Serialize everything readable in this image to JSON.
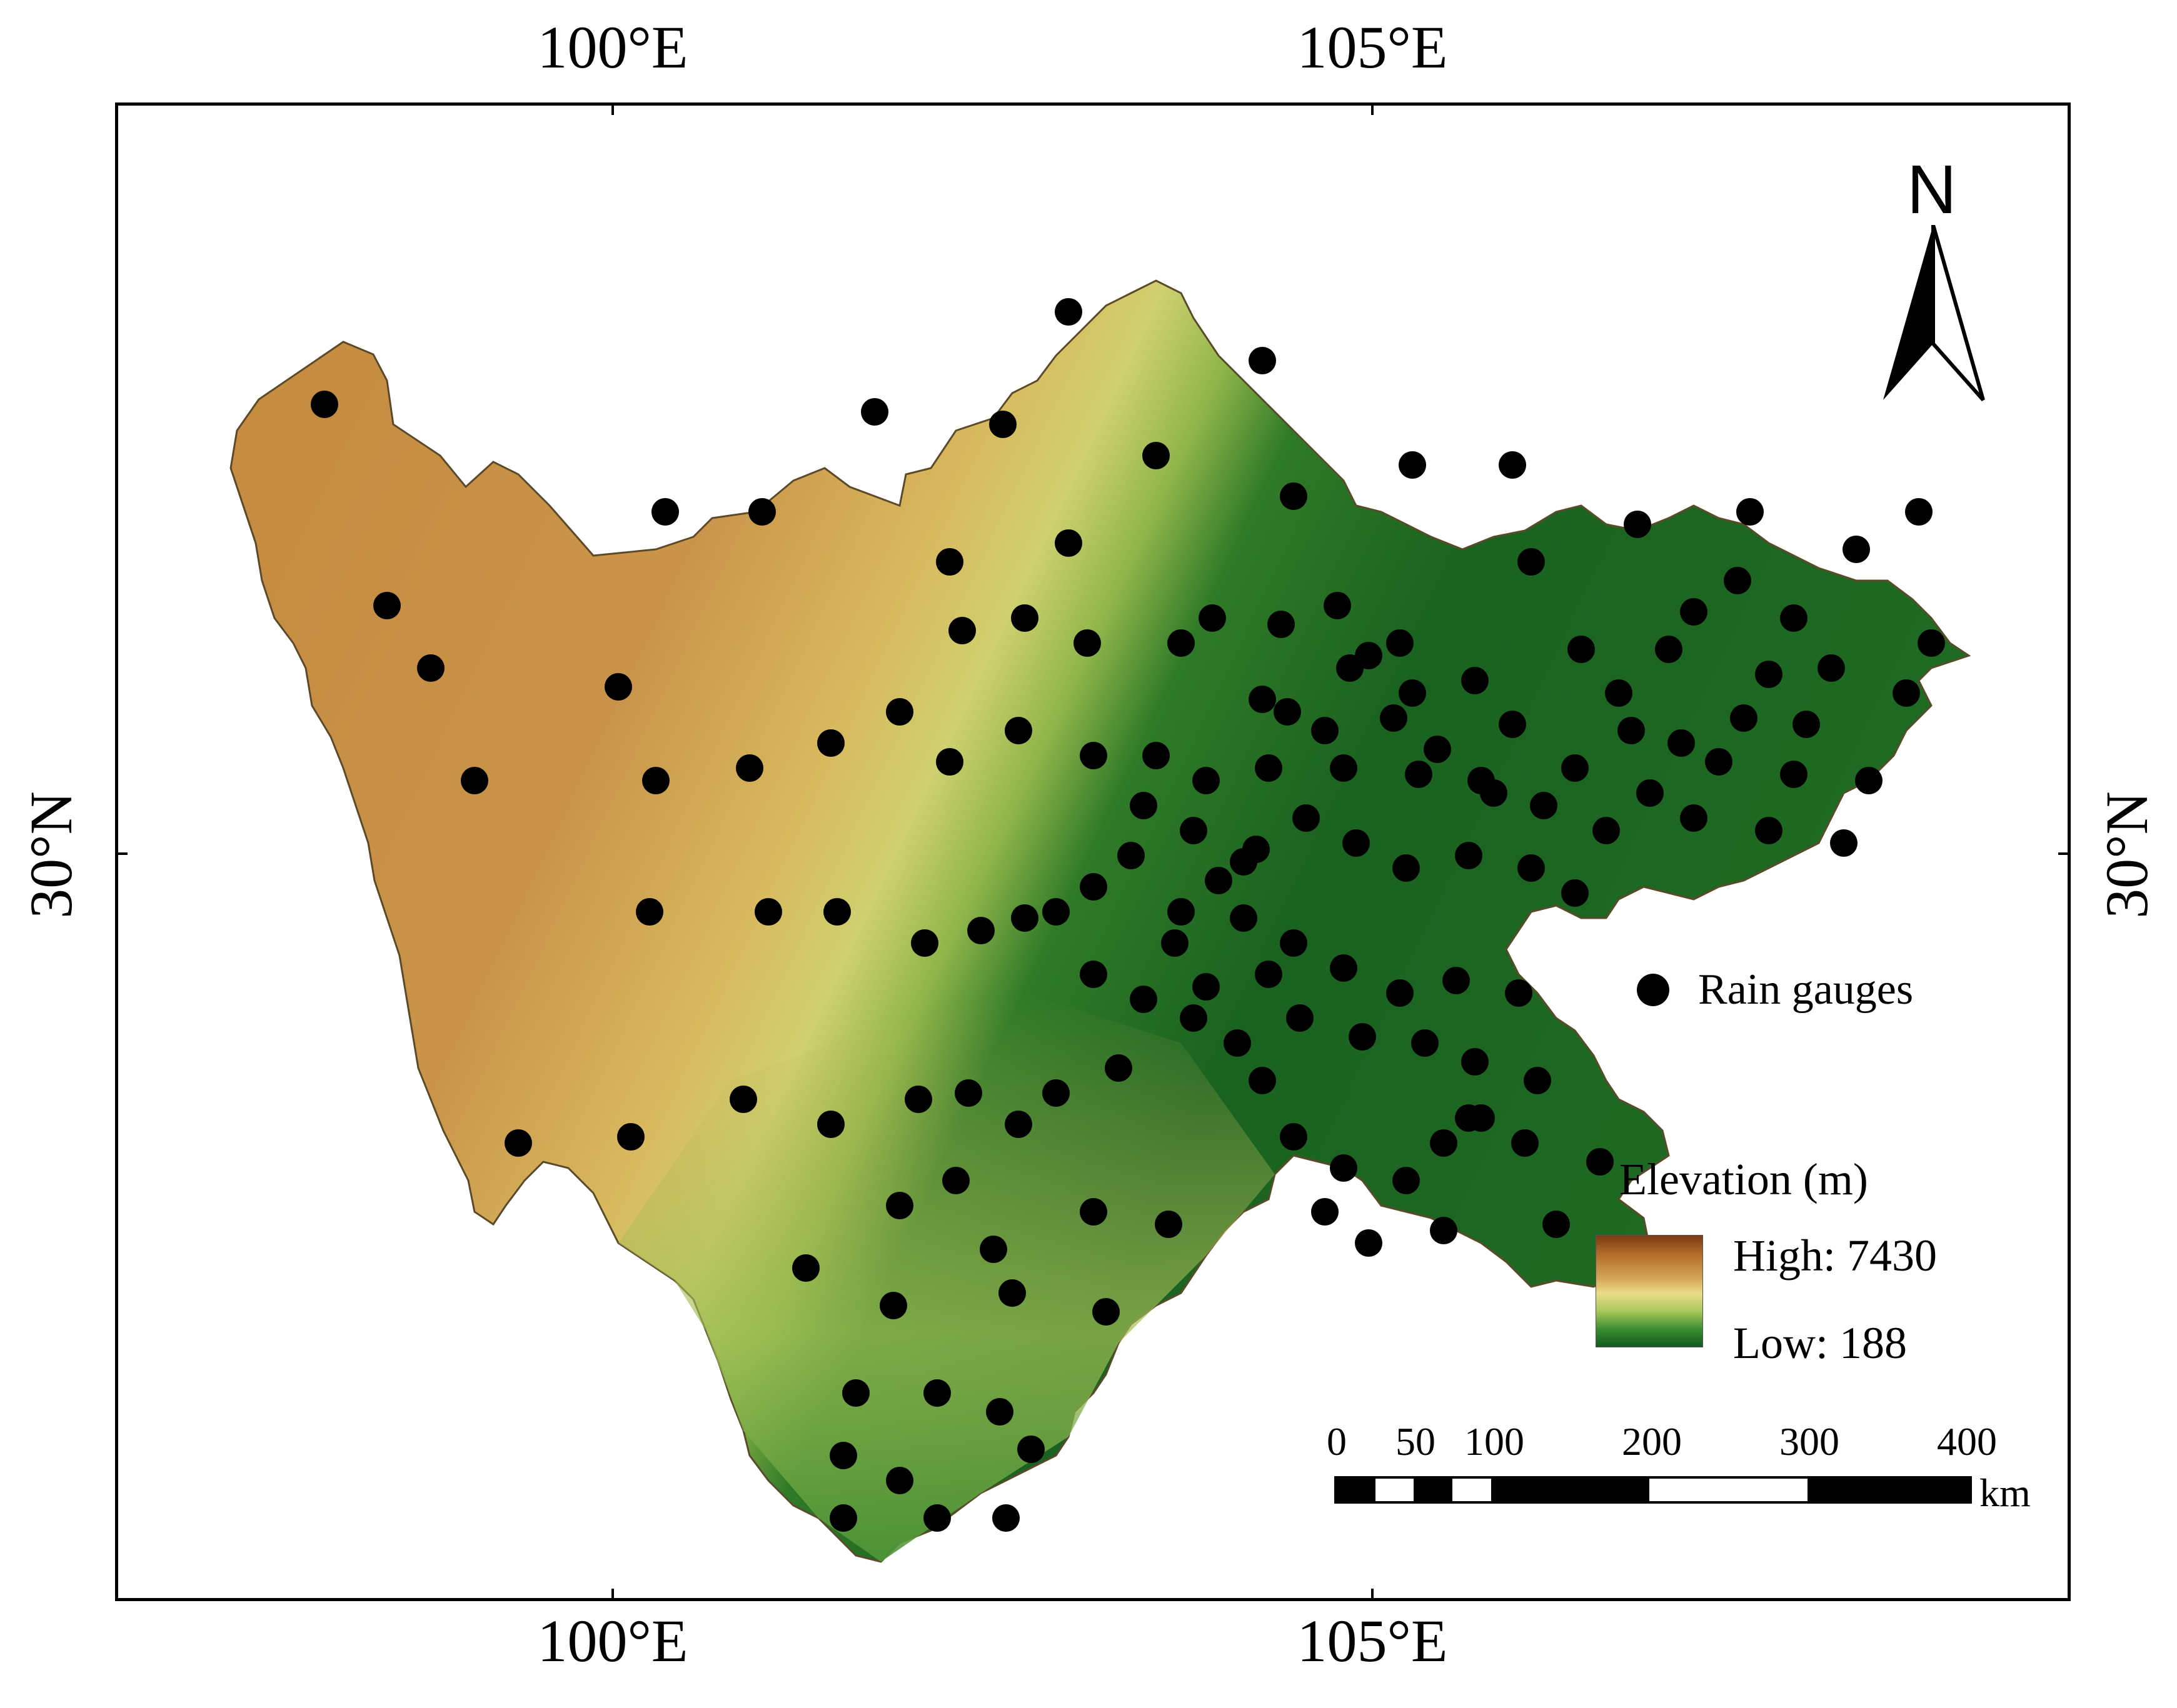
{
  "map": {
    "graticule": {
      "lon_labels": [
        "100°E",
        "105°E"
      ],
      "lat_labels": [
        "30°N"
      ]
    },
    "north_arrow": {
      "label": "N"
    },
    "legend": {
      "symbol_label": "Rain gauges",
      "elevation_title": "Elevation (m)",
      "elevation_high": "High: 7430",
      "elevation_low": "Low: 188",
      "ramp_colors": [
        "#7a3a12",
        "#b56f2c",
        "#d2a456",
        "#eadc88",
        "#a7c85a",
        "#3d8e32",
        "#0f5a1e"
      ]
    },
    "scale_bar": {
      "ticks": [
        "0",
        "50",
        "100",
        "200",
        "300",
        "400"
      ],
      "unit": "km"
    },
    "colors": {
      "highland": "#c48a3a",
      "midland": "#d9c46a",
      "lowland": "#1f6b23",
      "gauge": "#000000"
    }
  }
}
